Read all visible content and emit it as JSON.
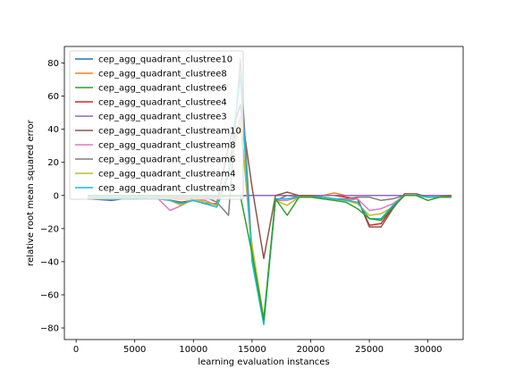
{
  "chart_data": {
    "type": "line",
    "title": "",
    "xlabel": "learning evaluation instances",
    "ylabel": "relative root mean squared error",
    "xlim": [
      -1000,
      33000
    ],
    "ylim": [
      -87,
      90
    ],
    "xticks": [
      0,
      5000,
      10000,
      15000,
      20000,
      25000,
      30000
    ],
    "yticks": [
      -80,
      -60,
      -40,
      -20,
      0,
      20,
      40,
      60,
      80
    ],
    "xtick_labels": [
      "0",
      "5000",
      "10000",
      "15000",
      "20000",
      "25000",
      "30000"
    ],
    "ytick_labels": [
      "−80",
      "−60",
      "−40",
      "−20",
      "0",
      "20",
      "40",
      "60",
      "80"
    ],
    "grid": false,
    "legend_position": "upper left",
    "x": [
      1000,
      2000,
      3000,
      4000,
      5000,
      6000,
      7000,
      8000,
      9000,
      10000,
      11000,
      12000,
      13000,
      14000,
      15000,
      16000,
      17000,
      18000,
      19000,
      20000,
      21000,
      22000,
      23000,
      24000,
      25000,
      26000,
      27000,
      28000,
      29000,
      30000,
      31000,
      32000
    ],
    "series": [
      {
        "name": "cep_agg_quadrant_clustree10",
        "color": "#1f77b4",
        "values": [
          -2,
          -2.5,
          -3,
          -2,
          -2,
          -1.5,
          -1,
          -1,
          -1,
          -1,
          -1,
          -1,
          -0.5,
          -0.3,
          0,
          0,
          0,
          0,
          0,
          0,
          0,
          0,
          0,
          0,
          0,
          0,
          0,
          0,
          0,
          0,
          0,
          0
        ]
      },
      {
        "name": "cep_agg_quadrant_clustree8",
        "color": "#ff7f0e",
        "values": [
          -1,
          -1.5,
          -2,
          -1.5,
          -1,
          -1,
          -1,
          -1.5,
          -2,
          -2,
          -2,
          -1,
          0,
          0,
          0,
          0,
          0,
          0,
          0,
          0,
          0,
          1.5,
          0,
          0,
          0,
          0,
          0,
          0,
          0,
          0,
          0,
          0
        ]
      },
      {
        "name": "cep_agg_quadrant_clustree6",
        "color": "#2ca02c",
        "values": [
          -1,
          -1,
          -1.5,
          -1.5,
          -1,
          -1,
          -1,
          -1,
          -1,
          -1,
          -1,
          -0.5,
          0,
          0,
          0,
          0,
          0,
          0,
          0,
          0,
          0,
          0,
          0,
          0,
          0,
          0,
          0,
          0,
          0,
          0,
          0,
          0
        ]
      },
      {
        "name": "cep_agg_quadrant_clustree4",
        "color": "#d62728",
        "values": [
          -1,
          -1,
          -1,
          -1,
          -1,
          -1,
          -1,
          -1,
          -1,
          -1,
          -1,
          -1,
          0,
          0,
          0,
          0,
          0,
          0,
          0,
          0,
          0,
          0,
          -1,
          -2,
          -18,
          -17,
          -7,
          0,
          0,
          0,
          0,
          0
        ]
      },
      {
        "name": "cep_agg_quadrant_clustree3",
        "color": "#9467bd",
        "values": [
          -1,
          -1,
          -1,
          -1,
          -1,
          -1,
          -1,
          -1,
          -1,
          -1,
          -1,
          -1,
          0,
          0,
          0,
          0,
          0,
          0,
          0,
          0,
          0,
          0,
          0,
          0,
          0,
          0,
          0,
          0,
          0,
          0,
          0,
          0
        ]
      },
      {
        "name": "cep_agg_quadrant_clustream10",
        "color": "#8c564b",
        "values": [
          -2,
          -2,
          -2,
          -1.5,
          -1.5,
          -1.5,
          -2,
          -3,
          -4,
          -3,
          -5,
          -5,
          30,
          55,
          5,
          -38,
          0,
          2,
          0,
          0,
          -1,
          -2,
          -3,
          -2,
          -19,
          -19,
          -8,
          1,
          1,
          -1,
          -1,
          0
        ]
      },
      {
        "name": "cep_agg_quadrant_clustream8",
        "color": "#e377c2",
        "values": [
          -1,
          -1,
          -1,
          -1,
          -1,
          -1,
          -2,
          -9,
          -6,
          -2,
          -3,
          -6,
          15,
          48,
          -35,
          -75,
          -3,
          -3,
          -1,
          -1,
          -1,
          -2,
          -3,
          -2,
          -9,
          -8,
          -5,
          0,
          0,
          -1,
          -1,
          -1
        ]
      },
      {
        "name": "cep_agg_quadrant_clustream6",
        "color": "#7f7f7f",
        "values": [
          -1,
          -1,
          -1,
          -1,
          -1,
          -1,
          -1,
          -1,
          -1,
          -1,
          -1,
          -4,
          -12,
          82,
          -35,
          -77,
          -3,
          0,
          -1,
          -1,
          -1,
          -2,
          -2,
          -1,
          -1,
          -3,
          -2,
          0,
          0,
          -1,
          -1,
          -1
        ]
      },
      {
        "name": "cep_agg_quadrant_clustream4",
        "color": "#bcbd22",
        "values": [
          -1,
          -1,
          -1,
          -1,
          -1,
          -1,
          -2,
          -3,
          -6,
          -2,
          -4,
          -6,
          14,
          45,
          -30,
          -74,
          -3,
          -6,
          -1,
          -1,
          -1,
          -2,
          -3,
          -5,
          -12,
          -11,
          -7,
          0,
          0,
          -1,
          -1,
          -1
        ]
      },
      {
        "name": "cep_agg_quadrant_clustream3",
        "color": "#17becf",
        "values": [
          -1,
          -1,
          -1,
          -1,
          -1,
          -1,
          -2,
          -3,
          -5,
          -3,
          -5,
          -7,
          12,
          72,
          -40,
          -78,
          -2,
          -2,
          -1,
          -1,
          -1,
          -2,
          -3,
          -4,
          -14,
          -14,
          -6,
          0,
          0,
          -1,
          -1,
          -1
        ]
      }
    ],
    "series_overlays": {
      "cep_agg_quadrant_clustree6": [
        0,
        0,
        0,
        0,
        0,
        0,
        0,
        0,
        0,
        0,
        0,
        0,
        0,
        0,
        -35,
        -75,
        -2,
        -12,
        -1,
        -1,
        -2,
        -3,
        -4,
        -8,
        -14,
        -15,
        -7,
        0,
        0,
        -3,
        -1,
        -1
      ]
    }
  }
}
